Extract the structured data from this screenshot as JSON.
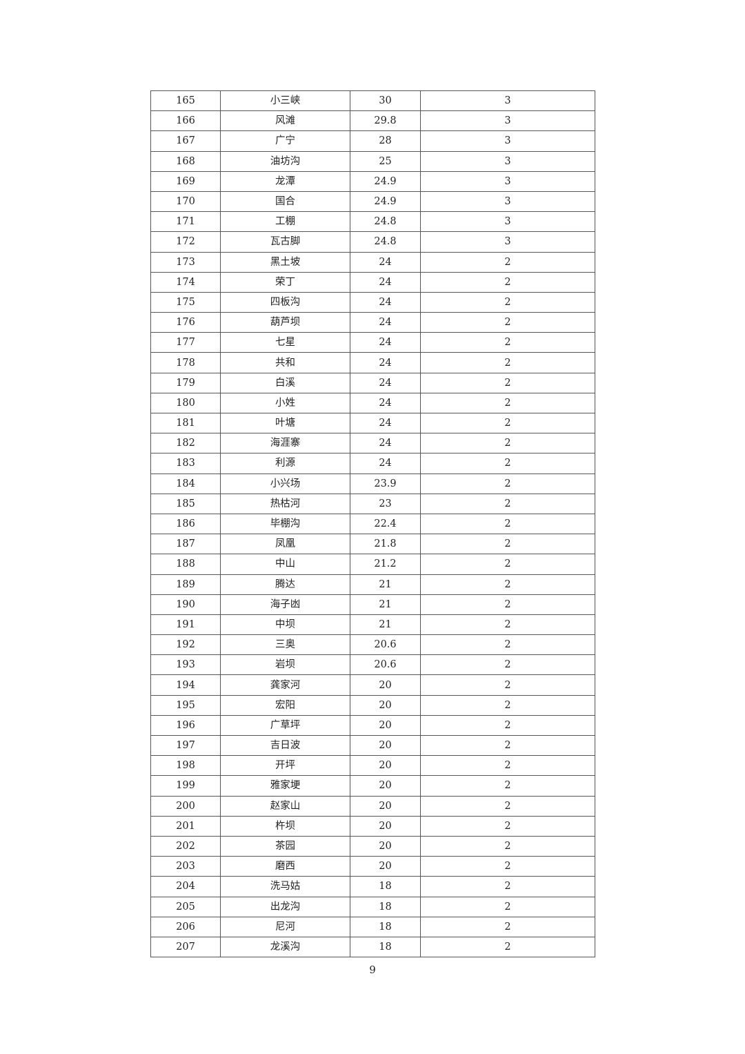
{
  "table": {
    "rows": [
      [
        "165",
        "小三峡",
        "30",
        "3"
      ],
      [
        "166",
        "风滩",
        "29.8",
        "3"
      ],
      [
        "167",
        "广宁",
        "28",
        "3"
      ],
      [
        "168",
        "油坊沟",
        "25",
        "3"
      ],
      [
        "169",
        "龙潭",
        "24.9",
        "3"
      ],
      [
        "170",
        "国合",
        "24.9",
        "3"
      ],
      [
        "171",
        "工棚",
        "24.8",
        "3"
      ],
      [
        "172",
        "瓦古脚",
        "24.8",
        "3"
      ],
      [
        "173",
        "黑土坡",
        "24",
        "2"
      ],
      [
        "174",
        "荣丁",
        "24",
        "2"
      ],
      [
        "175",
        "四板沟",
        "24",
        "2"
      ],
      [
        "176",
        "葫芦坝",
        "24",
        "2"
      ],
      [
        "177",
        "七星",
        "24",
        "2"
      ],
      [
        "178",
        "共和",
        "24",
        "2"
      ],
      [
        "179",
        "白溪",
        "24",
        "2"
      ],
      [
        "180",
        "小姓",
        "24",
        "2"
      ],
      [
        "181",
        "叶塘",
        "24",
        "2"
      ],
      [
        "182",
        "海涯寨",
        "24",
        "2"
      ],
      [
        "183",
        "利源",
        "24",
        "2"
      ],
      [
        "184",
        "小兴场",
        "23.9",
        "2"
      ],
      [
        "185",
        "热枯河",
        "23",
        "2"
      ],
      [
        "186",
        "毕棚沟",
        "22.4",
        "2"
      ],
      [
        "187",
        "凤凰",
        "21.8",
        "2"
      ],
      [
        "188",
        "中山",
        "21.2",
        "2"
      ],
      [
        "189",
        "腾达",
        "21",
        "2"
      ],
      [
        "190",
        "海子凼",
        "21",
        "2"
      ],
      [
        "191",
        "中坝",
        "21",
        "2"
      ],
      [
        "192",
        "三奥",
        "20.6",
        "2"
      ],
      [
        "193",
        "岩坝",
        "20.6",
        "2"
      ],
      [
        "194",
        "龚家河",
        "20",
        "2"
      ],
      [
        "195",
        "宏阳",
        "20",
        "2"
      ],
      [
        "196",
        "广草坪",
        "20",
        "2"
      ],
      [
        "197",
        "吉日波",
        "20",
        "2"
      ],
      [
        "198",
        "开坪",
        "20",
        "2"
      ],
      [
        "199",
        "雅家埂",
        "20",
        "2"
      ],
      [
        "200",
        "赵家山",
        "20",
        "2"
      ],
      [
        "201",
        "杵坝",
        "20",
        "2"
      ],
      [
        "202",
        "茶园",
        "20",
        "2"
      ],
      [
        "203",
        "磨西",
        "20",
        "2"
      ],
      [
        "204",
        "洗马姑",
        "18",
        "2"
      ],
      [
        "205",
        "出龙沟",
        "18",
        "2"
      ],
      [
        "206",
        "尼河",
        "18",
        "2"
      ],
      [
        "207",
        "龙溪沟",
        "18",
        "2"
      ]
    ]
  },
  "footer": {
    "page_number": "9"
  }
}
